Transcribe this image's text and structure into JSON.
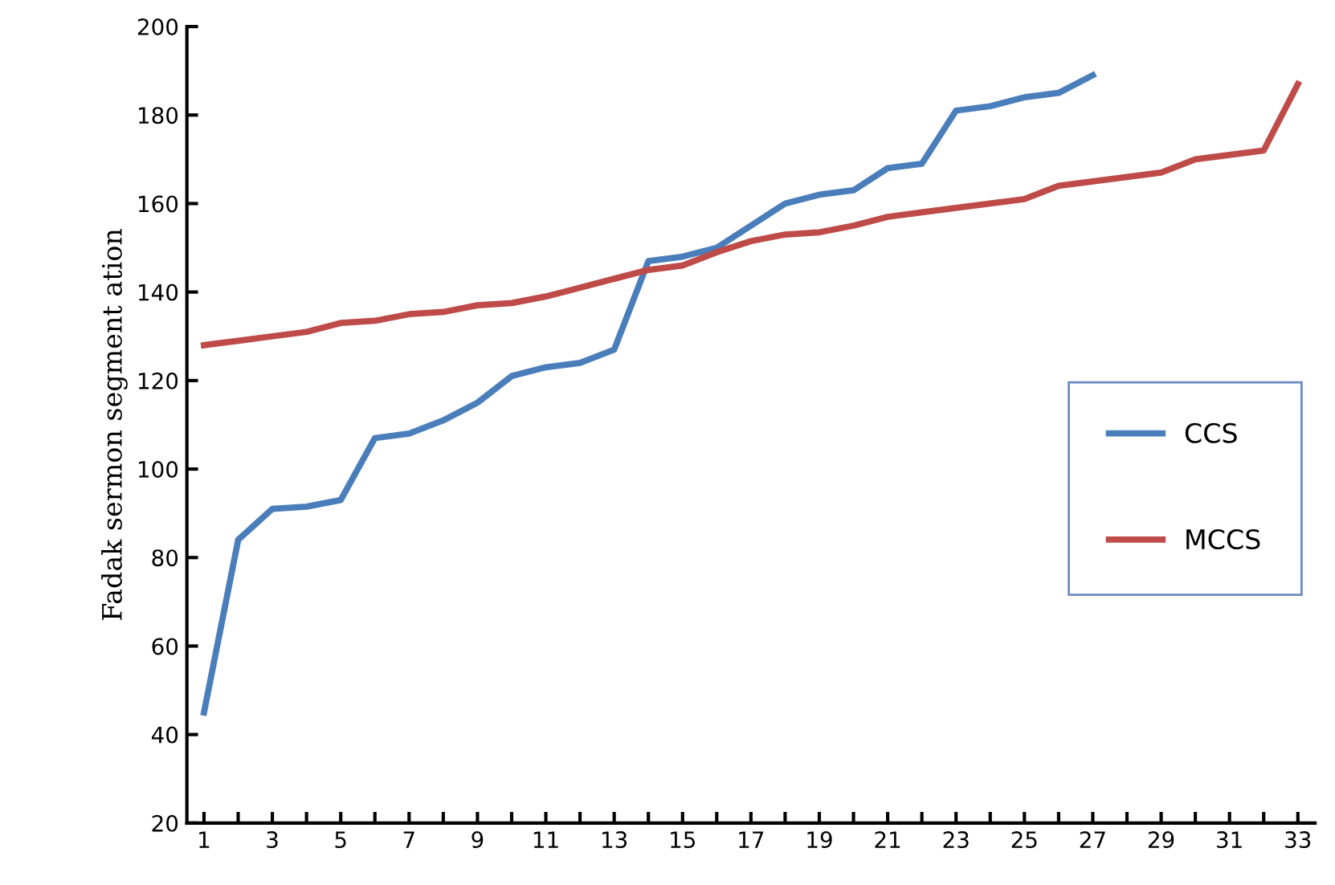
{
  "chart_data": {
    "type": "line",
    "ylabel": "Fadak sermon segment ation",
    "categories": [
      "1",
      null,
      "3",
      null,
      "5",
      null,
      "7",
      null,
      "9",
      null,
      "11",
      null,
      "13",
      null,
      "15",
      null,
      "17",
      null,
      "19",
      null,
      "21",
      null,
      "23",
      null,
      "25",
      null,
      "27",
      null,
      "29",
      null,
      "31",
      null,
      "33"
    ],
    "series": [
      {
        "name": "CCS",
        "color": "#4a7ebb",
        "values": [
          45,
          84,
          91,
          91.5,
          93,
          107,
          108,
          111,
          115,
          121,
          123,
          124,
          127,
          147,
          148,
          150,
          155,
          160,
          162,
          163,
          168,
          169,
          181,
          182,
          184,
          185,
          189,
          null,
          null,
          null,
          null,
          null,
          null
        ]
      },
      {
        "name": "MCCS",
        "color": "#be4b48",
        "values": [
          128,
          129,
          130,
          131,
          133,
          133.5,
          135,
          135.5,
          137,
          137.5,
          139,
          141,
          143,
          145,
          146,
          149,
          151.5,
          153,
          153.5,
          155,
          157,
          158,
          159,
          160,
          161,
          164,
          165,
          166,
          167,
          170,
          171,
          172,
          187
        ]
      }
    ],
    "ylim": [
      20,
      200
    ],
    "yticks": [
      20,
      40,
      60,
      80,
      100,
      120,
      140,
      160,
      180,
      200
    ],
    "legend": "right",
    "grid": false,
    "line_style": "solid",
    "marker": "none"
  }
}
